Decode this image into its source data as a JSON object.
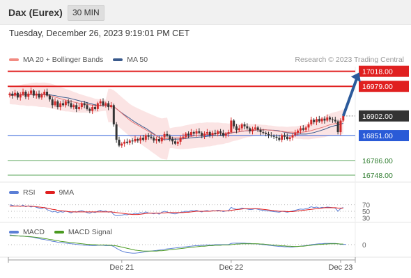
{
  "header": {
    "title": "Dax (Eurex)",
    "timeframe": "30 MIN"
  },
  "datetime": "Tuesday, December 26, 2023 9:19:01 PM CET",
  "legend_main": [
    {
      "label": "MA 20 + Bollinger Bands",
      "color": "#f28b82"
    },
    {
      "label": "MA 50",
      "color": "#3a5a8c"
    }
  ],
  "credit": "Research © 2023 Trading Central",
  "legend_rsi": [
    {
      "label": "RSI",
      "color": "#5b7fd6"
    },
    {
      "label": "9MA",
      "color": "#e02020"
    }
  ],
  "legend_macd": [
    {
      "label": "MACD",
      "color": "#5b7fd6"
    },
    {
      "label": "MACD Signal",
      "color": "#4a9a20"
    }
  ],
  "colors": {
    "up": "#d42a2a",
    "down": "#333333",
    "resistance": "#e02020",
    "support_blue": "#2a5bd7",
    "support_green": "#5aa55a",
    "current": "#333333",
    "arrow": "#2b5a9b"
  },
  "chart_data": {
    "type": "candlestick",
    "ylim": [
      16730,
      17030
    ],
    "x_labels": [
      {
        "label": "Dec 21",
        "index": 42
      },
      {
        "label": "Dec 22",
        "index": 83
      },
      {
        "label": "Dec 23",
        "index": 124
      }
    ],
    "levels": [
      {
        "label": "17018.00",
        "value": 17018,
        "kind": "resistance"
      },
      {
        "label": "16979.00",
        "value": 16979,
        "kind": "resistance"
      },
      {
        "label": "16902.00",
        "value": 16902,
        "kind": "current"
      },
      {
        "label": "16851.00",
        "value": 16851,
        "kind": "support_blue"
      },
      {
        "label": "16786.00",
        "value": 16786,
        "kind": "support_green"
      },
      {
        "label": "16748.00",
        "value": 16748,
        "kind": "support_green"
      }
    ],
    "forecast_arrow": {
      "from": {
        "index": 125,
        "value": 16902
      },
      "to": {
        "index": 131,
        "value": 17015
      }
    },
    "closes": [
      16960,
      16955,
      16962,
      16950,
      16958,
      16965,
      16952,
      16960,
      16968,
      16955,
      16960,
      16950,
      16958,
      16965,
      16955,
      16945,
      16930,
      16940,
      16925,
      16935,
      16930,
      16940,
      16935,
      16925,
      16930,
      16920,
      16925,
      16935,
      16930,
      16920,
      16915,
      16925,
      16920,
      16935,
      16940,
      16930,
      16935,
      16925,
      16930,
      16880,
      16840,
      16825,
      16830,
      16835,
      16832,
      16838,
      16836,
      16842,
      16838,
      16845,
      16840,
      16852,
      16848,
      16845,
      16838,
      16842,
      16836,
      16846,
      16855,
      16850,
      16842,
      16836,
      16830,
      16835,
      16845,
      16848,
      16856,
      16852,
      16860,
      16856,
      16862,
      16858,
      16850,
      16856,
      16860,
      16852,
      16858,
      16855,
      16862,
      16858,
      16850,
      16856,
      16860,
      16890,
      16875,
      16865,
      16870,
      16880,
      16875,
      16870,
      16862,
      16868,
      16872,
      16866,
      16860,
      16858,
      16855,
      16852,
      16850,
      16848,
      16845,
      16840,
      16852,
      16848,
      16842,
      16846,
      16852,
      16858,
      16864,
      16870,
      16866,
      16872,
      16880,
      16892,
      16886,
      16894,
      16888,
      16895,
      16890,
      16898,
      16893,
      16892,
      16888,
      16860,
      16890,
      16902
    ],
    "ma20": [
      16955,
      16955,
      16956,
      16956,
      16956,
      16957,
      16957,
      16957,
      16958,
      16958,
      16958,
      16957,
      16957,
      16957,
      16956,
      16955,
      16953,
      16951,
      16949,
      16947,
      16945,
      16943,
      16942,
      16940,
      16938,
      16937,
      16935,
      16934,
      16933,
      16932,
      16931,
      16930,
      16929,
      16929,
      16930,
      16930,
      16930,
      16929,
      16929,
      16926,
      16921,
      16915,
      16909,
      16903,
      16897,
      16891,
      16886,
      16882,
      16878,
      16874,
      16870,
      16866,
      16862,
      16858,
      16854,
      16850,
      16846,
      16843,
      16843,
      16843,
      16844,
      16845,
      16845,
      16845,
      16845,
      16846,
      16847,
      16848,
      16849,
      16850,
      16851,
      16852,
      16852,
      16853,
      16854,
      16854,
      16855,
      16855,
      16856,
      16856,
      16856,
      16857,
      16857,
      16859,
      16860,
      16860,
      16861,
      16862,
      16863,
      16864,
      16864,
      16865,
      16866,
      16866,
      16866,
      16866,
      16866,
      16865,
      16865,
      16864,
      16863,
      16862,
      16862,
      16861,
      16860,
      16860,
      16860,
      16859,
      16859,
      16860,
      16860,
      16861,
      16862,
      16864,
      16866,
      16868,
      16870,
      16872,
      16874,
      16877,
      16879,
      16881,
      16882,
      16883,
      16885,
      16888
    ]
  },
  "rsi": {
    "ticks": [
      "70",
      "50",
      "30"
    ],
    "values": [
      70,
      68,
      66,
      67,
      65,
      69,
      64,
      67,
      63,
      66,
      62,
      60,
      58,
      62,
      55,
      52,
      48,
      50,
      46,
      49,
      47,
      51,
      48,
      45,
      49,
      47,
      50,
      52,
      49,
      46,
      44,
      48,
      46,
      50,
      53,
      49,
      51,
      47,
      49,
      40,
      36,
      37,
      38,
      40,
      39,
      42,
      41,
      44,
      42,
      46,
      44,
      48,
      45,
      44,
      42,
      45,
      41,
      47,
      50,
      48,
      45,
      43,
      42,
      44,
      47,
      48,
      50,
      49,
      52,
      51,
      53,
      50,
      48,
      51,
      52,
      50,
      52,
      51,
      53,
      52,
      49,
      51,
      52,
      62,
      58,
      56,
      57,
      60,
      58,
      57,
      55,
      56,
      58,
      56,
      54,
      53,
      52,
      51,
      50,
      49,
      48,
      47,
      50,
      49,
      47,
      49,
      51,
      53,
      55,
      57,
      56,
      58,
      60,
      64,
      61,
      63,
      60,
      62,
      61,
      63,
      62,
      61,
      60,
      50,
      58,
      62
    ],
    "ma9": [
      66,
      66,
      66,
      66,
      66,
      66,
      66,
      66,
      66,
      65,
      64,
      63,
      62,
      61,
      60,
      58,
      56,
      55,
      53,
      52,
      51,
      50,
      49,
      48,
      48,
      48,
      48,
      48,
      48,
      48,
      48,
      48,
      48,
      48,
      48,
      48,
      48,
      48,
      48,
      47,
      46,
      45,
      44,
      43,
      42,
      41,
      40,
      40,
      40,
      41,
      42,
      43,
      44,
      44,
      44,
      44,
      44,
      45,
      45,
      46,
      46,
      46,
      46,
      46,
      46,
      46,
      47,
      47,
      48,
      49,
      50,
      50,
      50,
      50,
      50,
      50,
      51,
      51,
      51,
      51,
      51,
      51,
      51,
      53,
      54,
      55,
      56,
      57,
      58,
      58,
      58,
      58,
      58,
      58,
      57,
      56,
      55,
      54,
      53,
      52,
      51,
      50,
      50,
      50,
      49,
      49,
      49,
      50,
      51,
      52,
      53,
      54,
      55,
      56,
      57,
      58,
      59,
      60,
      61,
      61,
      61,
      61,
      61,
      60,
      60,
      60
    ]
  },
  "macd": {
    "tick": "0",
    "values": [
      32,
      31,
      30,
      29,
      28,
      28,
      27,
      26,
      25,
      24,
      22,
      20,
      18,
      17,
      15,
      13,
      11,
      10,
      8,
      7,
      6,
      5,
      4,
      3,
      2,
      1,
      0,
      -1,
      -2,
      -2,
      -3,
      -3,
      -3,
      -2,
      -2,
      -2,
      -3,
      -3,
      -3,
      -6,
      -12,
      -17,
      -21,
      -24,
      -26,
      -27,
      -28,
      -28,
      -27,
      -26,
      -25,
      -23,
      -22,
      -21,
      -20,
      -19,
      -18,
      -17,
      -15,
      -14,
      -13,
      -12,
      -11,
      -10,
      -9,
      -8,
      -7,
      -6,
      -5,
      -4,
      -3,
      -3,
      -2,
      -2,
      -1,
      -1,
      -1,
      0,
      0,
      0,
      0,
      0,
      0,
      4,
      5,
      5,
      5,
      5,
      5,
      4,
      4,
      3,
      3,
      2,
      1,
      0,
      -1,
      -2,
      -3,
      -4,
      -5,
      -6,
      -6,
      -7,
      -7,
      -8,
      -8,
      -7,
      -6,
      -5,
      -4,
      -3,
      -2,
      0,
      1,
      2,
      3,
      3,
      4,
      4,
      4,
      4,
      4,
      3,
      1,
      1,
      1
    ],
    "signal": [
      30,
      30,
      29,
      29,
      28,
      28,
      27,
      27,
      26,
      25,
      24,
      23,
      22,
      20,
      19,
      17,
      16,
      14,
      13,
      11,
      10,
      9,
      8,
      7,
      6,
      5,
      4,
      3,
      2,
      1,
      1,
      0,
      0,
      -1,
      -1,
      -1,
      -1,
      -2,
      -2,
      -3,
      -4,
      -6,
      -8,
      -10,
      -12,
      -14,
      -16,
      -18,
      -19,
      -20,
      -21,
      -21,
      -21,
      -21,
      -21,
      -21,
      -20,
      -20,
      -19,
      -18,
      -17,
      -16,
      -15,
      -14,
      -13,
      -12,
      -11,
      -10,
      -9,
      -8,
      -7,
      -6,
      -5,
      -5,
      -4,
      -3,
      -3,
      -2,
      -2,
      -2,
      -1,
      -1,
      -1,
      0,
      1,
      2,
      2,
      3,
      3,
      3,
      3,
      3,
      3,
      3,
      2,
      2,
      1,
      0,
      -1,
      -2,
      -2,
      -3,
      -4,
      -4,
      -5,
      -5,
      -6,
      -6,
      -6,
      -5,
      -5,
      -4,
      -3,
      -2,
      -1,
      0,
      1,
      1,
      2,
      2,
      3,
      3,
      3,
      3,
      2,
      2
    ]
  }
}
